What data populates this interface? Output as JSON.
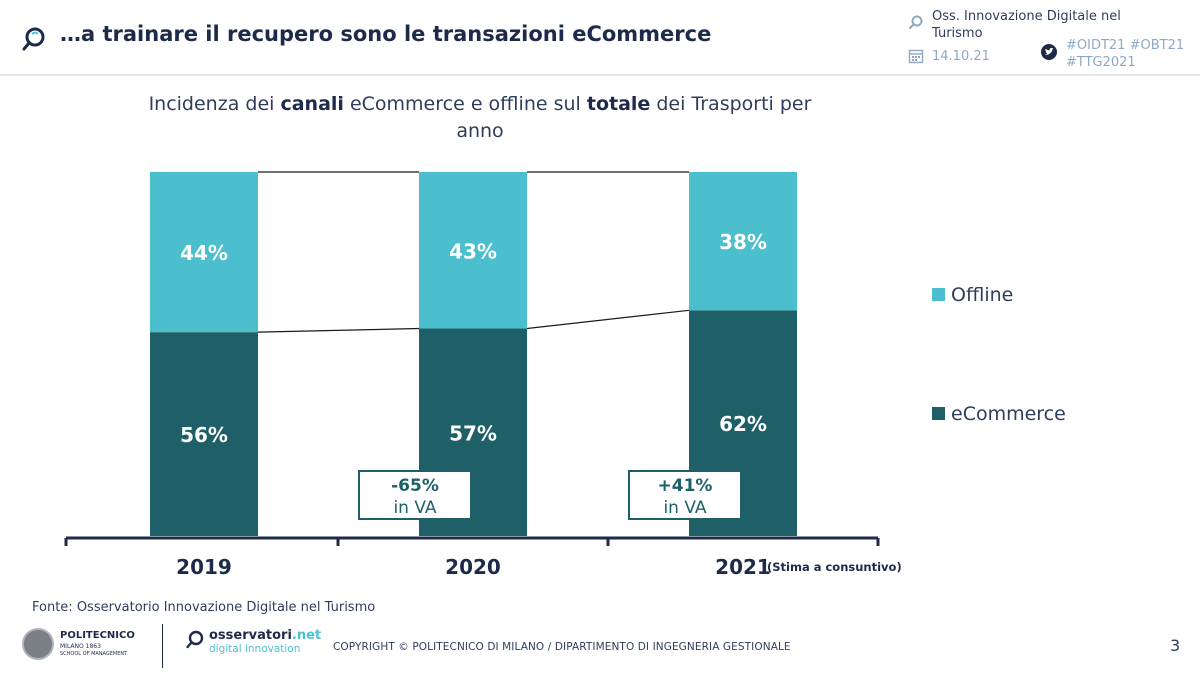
{
  "header": {
    "title": "…a trainare il recupero sono le transazioni eCommerce",
    "observatory": "Oss. Innovazione Digitale nel Turismo",
    "date": "14.10.21",
    "hashtags": "#OIDT21 #OBT21 #TTG2021"
  },
  "chart_title": {
    "part1": "Incidenza dei ",
    "bold1": "canali",
    "part2": " eCommerce e offline sul ",
    "bold2": "totale",
    "part3": " dei Trasporti per anno"
  },
  "chart_data": {
    "type": "bar",
    "stacked": true,
    "categories": [
      "2019",
      "2020",
      "2021"
    ],
    "category_note": "(Stima a consuntivo)",
    "series": [
      {
        "name": "eCommerce",
        "values": [
          56,
          57,
          62
        ],
        "color": "#1f6068"
      },
      {
        "name": "Offline",
        "values": [
          44,
          43,
          38
        ],
        "color": "#4bbfcd"
      }
    ],
    "value_suffix": "%",
    "ylim": [
      0,
      100
    ],
    "annotations": [
      {
        "after_category": "2020",
        "line1": "-65%",
        "line2": "in VA"
      },
      {
        "after_category": "2021",
        "line1": "+41%",
        "line2": "in VA"
      }
    ],
    "legend_position": "right"
  },
  "footer": {
    "source": "Fonte: Osservatorio Innovazione Digitale nel Turismo",
    "copyright": "COPYRIGHT © POLITECNICO DI MILANO / DIPARTIMENTO DI INGEGNERIA GESTIONALE",
    "page_number": "3",
    "logo_polimi_name": "POLITECNICO",
    "logo_polimi_sub": "MILANO 1863",
    "logo_polimi_sub2": "SCHOOL OF MANAGEMENT",
    "logo_oss_line1": "osservatori",
    "logo_oss_line1_suffix": ".net",
    "logo_oss_line2": "digital innovation"
  }
}
